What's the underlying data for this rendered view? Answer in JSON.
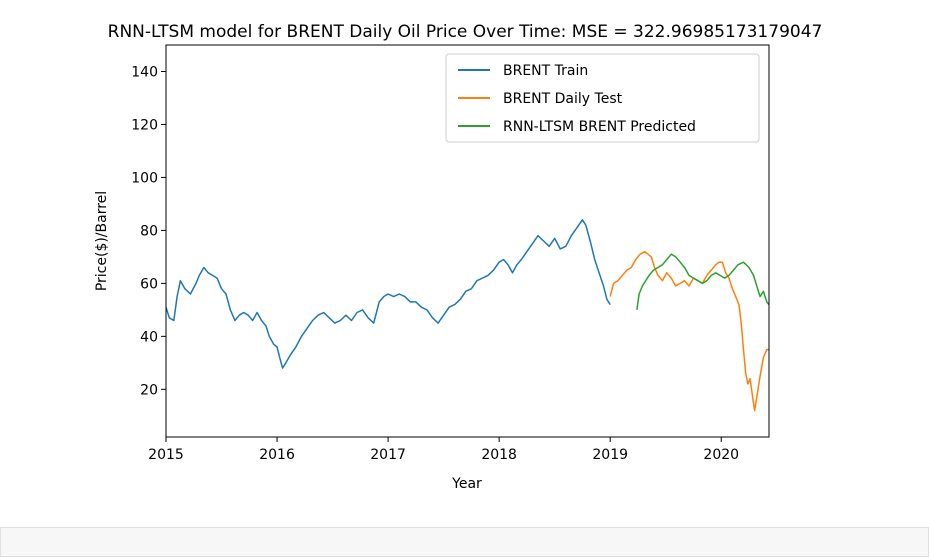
{
  "chart_data": {
    "type": "line",
    "title": "RNN-LTSM model for BRENT Daily Oil Price Over Time: MSE = 322.96985173179047",
    "xlabel": "Year",
    "ylabel": "Price($)/Barrel",
    "xlim": [
      2015.0,
      2020.43
    ],
    "ylim": [
      2,
      150
    ],
    "xticks": [
      2015,
      2016,
      2017,
      2018,
      2019,
      2020
    ],
    "xtick_labels": [
      "2015",
      "2016",
      "2017",
      "2018",
      "2019",
      "2020"
    ],
    "yticks": [
      20,
      40,
      60,
      80,
      100,
      120,
      140
    ],
    "ytick_labels": [
      "20",
      "40",
      "60",
      "80",
      "100",
      "120",
      "140"
    ],
    "grid": false,
    "legend_position": "top-right",
    "series": [
      {
        "name": "BRENT Train",
        "color": "#1f77b4",
        "points": [
          [
            2015.0,
            51
          ],
          [
            2015.03,
            47
          ],
          [
            2015.07,
            46
          ],
          [
            2015.1,
            55
          ],
          [
            2015.13,
            61
          ],
          [
            2015.17,
            58
          ],
          [
            2015.22,
            56
          ],
          [
            2015.27,
            60
          ],
          [
            2015.3,
            63
          ],
          [
            2015.34,
            66
          ],
          [
            2015.38,
            64
          ],
          [
            2015.42,
            63
          ],
          [
            2015.46,
            62
          ],
          [
            2015.5,
            58
          ],
          [
            2015.54,
            56
          ],
          [
            2015.58,
            50
          ],
          [
            2015.62,
            46
          ],
          [
            2015.66,
            48
          ],
          [
            2015.7,
            49
          ],
          [
            2015.74,
            48
          ],
          [
            2015.78,
            46
          ],
          [
            2015.82,
            49
          ],
          [
            2015.86,
            46
          ],
          [
            2015.9,
            44
          ],
          [
            2015.93,
            40
          ],
          [
            2015.97,
            37
          ],
          [
            2016.0,
            36
          ],
          [
            2016.03,
            31
          ],
          [
            2016.05,
            28
          ],
          [
            2016.08,
            30
          ],
          [
            2016.12,
            33
          ],
          [
            2016.17,
            36
          ],
          [
            2016.22,
            40
          ],
          [
            2016.27,
            43
          ],
          [
            2016.32,
            46
          ],
          [
            2016.37,
            48
          ],
          [
            2016.42,
            49
          ],
          [
            2016.47,
            47
          ],
          [
            2016.52,
            45
          ],
          [
            2016.57,
            46
          ],
          [
            2016.62,
            48
          ],
          [
            2016.67,
            46
          ],
          [
            2016.72,
            49
          ],
          [
            2016.77,
            50
          ],
          [
            2016.82,
            47
          ],
          [
            2016.87,
            45
          ],
          [
            2016.92,
            53
          ],
          [
            2016.96,
            55
          ],
          [
            2017.0,
            56
          ],
          [
            2017.05,
            55
          ],
          [
            2017.1,
            56
          ],
          [
            2017.15,
            55
          ],
          [
            2017.2,
            53
          ],
          [
            2017.25,
            53
          ],
          [
            2017.3,
            51
          ],
          [
            2017.35,
            50
          ],
          [
            2017.4,
            47
          ],
          [
            2017.45,
            45
          ],
          [
            2017.5,
            48
          ],
          [
            2017.55,
            51
          ],
          [
            2017.6,
            52
          ],
          [
            2017.65,
            54
          ],
          [
            2017.7,
            57
          ],
          [
            2017.75,
            58
          ],
          [
            2017.8,
            61
          ],
          [
            2017.85,
            62
          ],
          [
            2017.9,
            63
          ],
          [
            2017.95,
            65
          ],
          [
            2018.0,
            68
          ],
          [
            2018.04,
            69
          ],
          [
            2018.08,
            67
          ],
          [
            2018.12,
            64
          ],
          [
            2018.16,
            67
          ],
          [
            2018.2,
            69
          ],
          [
            2018.25,
            72
          ],
          [
            2018.3,
            75
          ],
          [
            2018.35,
            78
          ],
          [
            2018.4,
            76
          ],
          [
            2018.45,
            74
          ],
          [
            2018.5,
            77
          ],
          [
            2018.55,
            73
          ],
          [
            2018.6,
            74
          ],
          [
            2018.65,
            78
          ],
          [
            2018.7,
            81
          ],
          [
            2018.75,
            84
          ],
          [
            2018.78,
            82
          ],
          [
            2018.82,
            76
          ],
          [
            2018.86,
            69
          ],
          [
            2018.9,
            64
          ],
          [
            2018.94,
            59
          ],
          [
            2018.97,
            54
          ],
          [
            2019.0,
            52
          ]
        ]
      },
      {
        "name": "BRENT Daily Test",
        "color": "#ff7f0e",
        "points": [
          [
            2019.0,
            55
          ],
          [
            2019.03,
            60
          ],
          [
            2019.07,
            61
          ],
          [
            2019.11,
            63
          ],
          [
            2019.15,
            65
          ],
          [
            2019.19,
            66
          ],
          [
            2019.23,
            69
          ],
          [
            2019.27,
            71
          ],
          [
            2019.31,
            72
          ],
          [
            2019.34,
            71
          ],
          [
            2019.37,
            70
          ],
          [
            2019.4,
            66
          ],
          [
            2019.43,
            63
          ],
          [
            2019.47,
            61
          ],
          [
            2019.51,
            64
          ],
          [
            2019.55,
            62
          ],
          [
            2019.59,
            59
          ],
          [
            2019.63,
            60
          ],
          [
            2019.67,
            61
          ],
          [
            2019.71,
            59
          ],
          [
            2019.75,
            62
          ],
          [
            2019.79,
            61
          ],
          [
            2019.83,
            60
          ],
          [
            2019.87,
            63
          ],
          [
            2019.91,
            65
          ],
          [
            2019.95,
            67
          ],
          [
            2019.98,
            68
          ],
          [
            2020.01,
            68
          ],
          [
            2020.04,
            64
          ],
          [
            2020.07,
            62
          ],
          [
            2020.1,
            58
          ],
          [
            2020.13,
            55
          ],
          [
            2020.16,
            52
          ],
          [
            2020.18,
            45
          ],
          [
            2020.2,
            35
          ],
          [
            2020.22,
            26
          ],
          [
            2020.24,
            22
          ],
          [
            2020.26,
            24
          ],
          [
            2020.28,
            18
          ],
          [
            2020.3,
            12
          ],
          [
            2020.32,
            17
          ],
          [
            2020.35,
            25
          ],
          [
            2020.38,
            32
          ],
          [
            2020.41,
            35
          ],
          [
            2020.43,
            35
          ]
        ]
      },
      {
        "name": "RNN-LTSM BRENT Predicted",
        "color": "#2ca02c",
        "points": [
          [
            2019.24,
            50
          ],
          [
            2019.26,
            56
          ],
          [
            2019.29,
            59
          ],
          [
            2019.32,
            61
          ],
          [
            2019.35,
            63
          ],
          [
            2019.39,
            65
          ],
          [
            2019.43,
            66
          ],
          [
            2019.47,
            67
          ],
          [
            2019.51,
            69
          ],
          [
            2019.55,
            71
          ],
          [
            2019.59,
            70
          ],
          [
            2019.63,
            68
          ],
          [
            2019.67,
            66
          ],
          [
            2019.71,
            63
          ],
          [
            2019.75,
            62
          ],
          [
            2019.79,
            61
          ],
          [
            2019.83,
            60
          ],
          [
            2019.87,
            61
          ],
          [
            2019.91,
            63
          ],
          [
            2019.95,
            64
          ],
          [
            2019.99,
            63
          ],
          [
            2020.03,
            62
          ],
          [
            2020.07,
            63
          ],
          [
            2020.11,
            65
          ],
          [
            2020.15,
            67
          ],
          [
            2020.2,
            68
          ],
          [
            2020.25,
            66
          ],
          [
            2020.29,
            63
          ],
          [
            2020.32,
            59
          ],
          [
            2020.35,
            55
          ],
          [
            2020.38,
            57
          ],
          [
            2020.41,
            53
          ],
          [
            2020.43,
            52
          ]
        ]
      }
    ]
  }
}
